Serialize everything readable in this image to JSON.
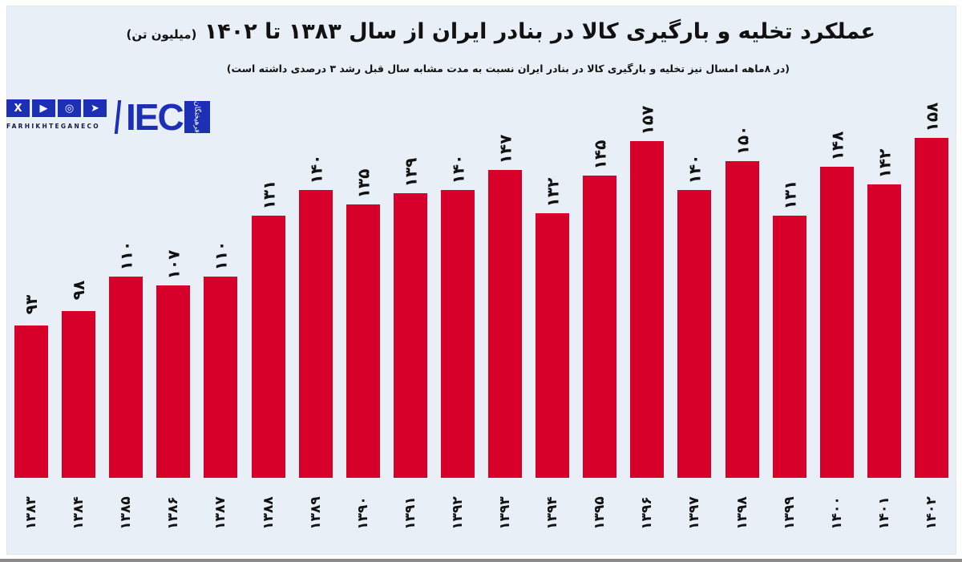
{
  "title": {
    "main": "عملکرد تخلیه و بارگیری کالا در بنادر ایران از سال ۱۳۸۳ تا ۱۴۰۲",
    "unit": "(میلیون تن)"
  },
  "subtitle": "(در ۸ماهه امسال نیز تخلیه و بارگیری کالا در بنادر ایران نسبت به مدت مشابه سال قبل رشد ۳ درصدی داشته است)",
  "logo": {
    "social_icons": [
      "x-icon",
      "youtube-icon",
      "instagram-icon",
      "telegram-icon"
    ],
    "social_glyphs": [
      "X",
      "▶",
      "◎",
      "➤"
    ],
    "brand_text": "FARHIKHTEGANECO",
    "iec_text": "IEC",
    "badge_text": "فرهیختگان"
  },
  "colors": {
    "bar": "#d6002a",
    "background": "#e8eff7",
    "brand": "#1c2fb5"
  },
  "chart_data": {
    "type": "bar",
    "title": "عملکرد تخلیه و بارگیری کالا در بنادر ایران از سال ۱۳۸۳ تا ۱۴۰۲ (میلیون تن)",
    "subtitle": "(در ۸ماهه امسال نیز تخلیه و بارگیری کالا در بنادر ایران نسبت به مدت مشابه سال قبل رشد ۳ درصدی داشته است)",
    "xlabel": "",
    "ylabel": "میلیون تن",
    "categories": [
      "1383",
      "1384",
      "1385",
      "1386",
      "1387",
      "1388",
      "1389",
      "1390",
      "1391",
      "1392",
      "1393",
      "1394",
      "1395",
      "1396",
      "1397",
      "1398",
      "1399",
      "1400",
      "1401",
      "1402"
    ],
    "category_labels": [
      "۱۳۸۳",
      "۱۳۸۴",
      "۱۳۸۵",
      "۱۳۸۶",
      "۱۳۸۷",
      "۱۳۸۸",
      "۱۳۸۹",
      "۱۳۹۰",
      "۱۳۹۱",
      "۱۳۹۲",
      "۱۳۹۳",
      "۱۳۹۴",
      "۱۳۹۵",
      "۱۳۹۶",
      "۱۳۹۷",
      "۱۳۹۸",
      "۱۳۹۹",
      "۱۴۰۰",
      "۱۴۰۱",
      "۱۴۰۲"
    ],
    "values": [
      93,
      98,
      110,
      107,
      110,
      131,
      140,
      135,
      139,
      140,
      147,
      132,
      145,
      157,
      140,
      150,
      131,
      148,
      142,
      158
    ],
    "value_labels": [
      "۹۳",
      "۹۸",
      "۱۱۰",
      "۱۰۷",
      "۱۱۰",
      "۱۳۱",
      "۱۴۰",
      "۱۳۵",
      "۱۳۹",
      "۱۴۰",
      "۱۴۷",
      "۱۳۲",
      "۱۴۵",
      "۱۵۷",
      "۱۴۰",
      "۱۵۰",
      "۱۳۱",
      "۱۴۸",
      "۱۴۲",
      "۱۵۸"
    ],
    "grid": false,
    "legend": null,
    "ylim": [
      40,
      165
    ]
  }
}
